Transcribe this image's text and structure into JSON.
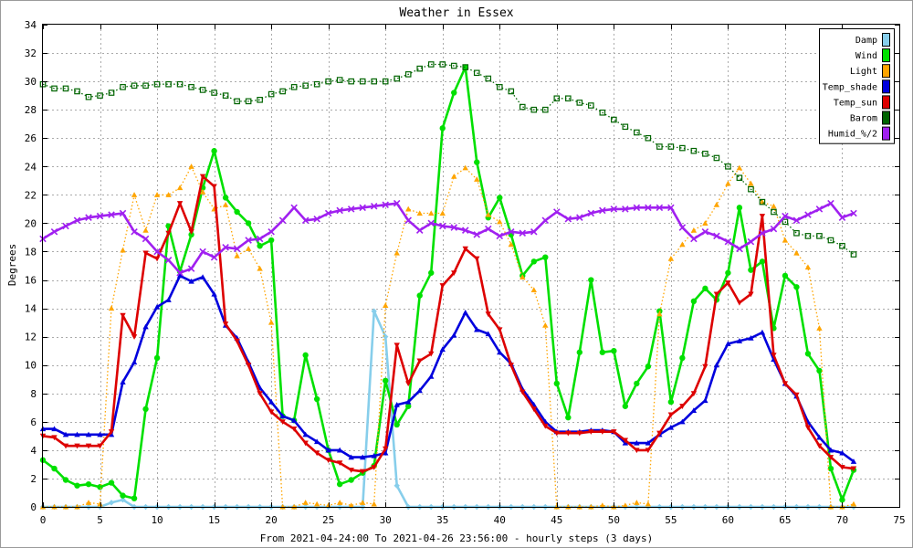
{
  "chart_data": {
    "type": "line",
    "title": "Weather in Essex",
    "xlabel": "From 2021-04-24:00 To 2021-04-26 23:56:00 - hourly steps (3 days)",
    "ylabel": "Degrees",
    "xlim": [
      0,
      75
    ],
    "ylim": [
      0,
      34
    ],
    "xticks": [
      0,
      5,
      10,
      15,
      20,
      25,
      30,
      35,
      40,
      45,
      50,
      55,
      60,
      65,
      70,
      75
    ],
    "yticks": [
      0,
      2,
      4,
      6,
      8,
      10,
      12,
      14,
      16,
      18,
      20,
      22,
      24,
      26,
      28,
      30,
      32,
      34
    ],
    "grid": true,
    "legend_position": "top-right",
    "x": [
      0,
      1,
      2,
      3,
      4,
      5,
      6,
      7,
      8,
      9,
      10,
      11,
      12,
      13,
      14,
      15,
      16,
      17,
      18,
      19,
      20,
      21,
      22,
      23,
      24,
      25,
      26,
      27,
      28,
      29,
      30,
      31,
      32,
      33,
      34,
      35,
      36,
      37,
      38,
      39,
      40,
      41,
      42,
      43,
      44,
      45,
      46,
      47,
      48,
      49,
      50,
      51,
      52,
      53,
      54,
      55,
      56,
      57,
      58,
      59,
      60,
      61,
      62,
      63,
      64,
      65,
      66,
      67,
      68,
      69,
      70,
      71
    ],
    "series": [
      {
        "name": "Damp",
        "color": "#87ceeb",
        "style": "solid",
        "marker": "diamond",
        "values": [
          0,
          0,
          0,
          0,
          0,
          0,
          0.3,
          0.5,
          0,
          0,
          0,
          0,
          0,
          0,
          0,
          0,
          0,
          0,
          0,
          0,
          0,
          0,
          0,
          0,
          0,
          0,
          0,
          0,
          0,
          13.8,
          12,
          1.5,
          0,
          0,
          0,
          0,
          0,
          0,
          0,
          0,
          0,
          0,
          0,
          0,
          0,
          0,
          0,
          0,
          0,
          0,
          0,
          0,
          0,
          0,
          0,
          0,
          0,
          0,
          0,
          0,
          0,
          0,
          0,
          0,
          0,
          0,
          0,
          0,
          0,
          0,
          0,
          0
        ]
      },
      {
        "name": "Wind",
        "color": "#00e000",
        "style": "solid",
        "marker": "circle",
        "values": [
          3.3,
          2.7,
          1.9,
          1.5,
          1.6,
          1.4,
          1.7,
          0.8,
          0.6,
          6.9,
          10.5,
          19.8,
          16.6,
          19.2,
          22.5,
          25.1,
          21.8,
          20.8,
          20,
          18.4,
          18.8,
          6.4,
          6.1,
          10.7,
          7.6,
          4,
          1.6,
          1.9,
          2.4,
          2.9,
          8.9,
          5.8,
          7.1,
          14.9,
          16.5,
          26.7,
          29.2,
          31,
          24.3,
          20.4,
          21.8,
          19.2,
          16.3,
          17.3,
          17.6,
          8.7,
          6.3,
          10.9,
          16,
          10.9,
          11,
          7.1,
          8.7,
          9.9,
          13.8,
          7.4,
          10.5,
          14.5,
          15.4,
          14.6,
          16.5,
          21.1,
          16.7,
          17.3,
          12.6,
          16.3,
          15.5,
          10.8,
          9.6,
          2.7,
          0.5,
          2.6
        ]
      },
      {
        "name": "Light",
        "color": "#ffa500",
        "style": "dotted",
        "marker": "triangle",
        "values": [
          0,
          0,
          0,
          0,
          0.3,
          0.2,
          14,
          18.1,
          22,
          19.5,
          22,
          22,
          22.5,
          24,
          22.2,
          21,
          21.3,
          17.7,
          18.2,
          16.8,
          13,
          0,
          0,
          0.3,
          0.2,
          0.1,
          0.3,
          0.1,
          0.3,
          0.2,
          14.2,
          17.9,
          21,
          20.7,
          20.7,
          20.7,
          23.3,
          23.9,
          23.1,
          20.6,
          20.1,
          18.5,
          16.2,
          15.3,
          12.8,
          0,
          0,
          0,
          0,
          0.1,
          0,
          0.1,
          0.3,
          0.2,
          13.6,
          17.5,
          18.5,
          19.5,
          20,
          21.3,
          22.8,
          23.9,
          22.8,
          21.5,
          21.2,
          18.8,
          17.9,
          16.9,
          12.6,
          0,
          0,
          0.2
        ]
      },
      {
        "name": "Temp_shade",
        "color": "#0000dd",
        "style": "solid",
        "marker": "triangle",
        "values": [
          5.5,
          5.5,
          5.1,
          5.1,
          5.1,
          5.1,
          5.1,
          8.8,
          10.2,
          12.7,
          14.1,
          14.6,
          16.3,
          15.9,
          16.2,
          15,
          12.8,
          11.9,
          10.2,
          8.4,
          7.4,
          6.4,
          6.1,
          5.1,
          4.6,
          4,
          4,
          3.5,
          3.5,
          3.6,
          3.8,
          7.2,
          7.4,
          8.2,
          9.2,
          11.1,
          12.1,
          13.7,
          12.5,
          12.2,
          10.9,
          10.1,
          8.3,
          7.2,
          6,
          5.3,
          5.3,
          5.3,
          5.4,
          5.4,
          5.3,
          4.5,
          4.5,
          4.5,
          5.1,
          5.6,
          6,
          6.8,
          7.5,
          10,
          11.5,
          11.7,
          11.9,
          12.3,
          10.4,
          8.7,
          7.8,
          6,
          4.9,
          4,
          3.8,
          3.2
        ]
      },
      {
        "name": "Temp_sun",
        "color": "#dd0000",
        "style": "solid",
        "marker": "triangle-down",
        "values": [
          5,
          4.9,
          4.3,
          4.3,
          4.3,
          4.3,
          5.3,
          13.5,
          12,
          17.9,
          17.5,
          19.3,
          21.4,
          19.4,
          23.3,
          22.6,
          12.9,
          11.7,
          10,
          8,
          6.7,
          6,
          5.5,
          4.5,
          3.8,
          3.3,
          3.1,
          2.6,
          2.5,
          2.8,
          4.1,
          11.4,
          8.7,
          10.3,
          10.8,
          15.6,
          16.5,
          18.2,
          17.5,
          13.6,
          12.5,
          10,
          8.1,
          6.9,
          5.7,
          5.2,
          5.2,
          5.2,
          5.3,
          5.3,
          5.3,
          4.7,
          4,
          4,
          5.2,
          6.5,
          7.1,
          8,
          9.9,
          15,
          15.8,
          14.4,
          15,
          20.5,
          10.7,
          8.7,
          7.9,
          5.6,
          4.3,
          3.5,
          2.8,
          2.7
        ]
      },
      {
        "name": "Barom",
        "color": "#006400",
        "style": "dotted",
        "marker": "square",
        "values": [
          29.8,
          29.5,
          29.5,
          29.3,
          28.9,
          29,
          29.2,
          29.6,
          29.7,
          29.7,
          29.8,
          29.8,
          29.8,
          29.6,
          29.4,
          29.2,
          29,
          28.6,
          28.6,
          28.7,
          29.1,
          29.3,
          29.6,
          29.7,
          29.8,
          30,
          30.1,
          30,
          30,
          30,
          30,
          30.2,
          30.5,
          30.9,
          31.2,
          31.2,
          31.1,
          31,
          30.6,
          30.2,
          29.6,
          29.3,
          28.2,
          28,
          28,
          28.8,
          28.8,
          28.5,
          28.3,
          27.8,
          27.3,
          26.8,
          26.4,
          26,
          25.4,
          25.4,
          25.3,
          25.1,
          24.9,
          24.6,
          24,
          23.2,
          22.4,
          21.5,
          20.8,
          20.1,
          19.3,
          19.1,
          19.1,
          18.8,
          18.4,
          17.8
        ]
      },
      {
        "name": "Humid_%/2",
        "color": "#a020f0",
        "style": "solid",
        "marker": "x",
        "values": [
          18.9,
          19.4,
          19.8,
          20.2,
          20.4,
          20.5,
          20.6,
          20.7,
          19.4,
          18.9,
          18,
          17.4,
          16.5,
          16.8,
          18,
          17.6,
          18.3,
          18.2,
          18.8,
          18.9,
          19.4,
          20.2,
          21.1,
          20.2,
          20.3,
          20.7,
          20.9,
          21,
          21.1,
          21.2,
          21.3,
          21.4,
          20.2,
          19.5,
          20,
          19.8,
          19.7,
          19.5,
          19.2,
          19.6,
          19.1,
          19.4,
          19.3,
          19.4,
          20.2,
          20.8,
          20.3,
          20.4,
          20.7,
          20.9,
          21,
          21,
          21.1,
          21.1,
          21.1,
          21.1,
          19.7,
          18.9,
          19.4,
          19.1,
          18.7,
          18.2,
          18.7,
          19.3,
          19.6,
          20.5,
          20.2,
          20.6,
          21,
          21.4,
          20.4,
          20.7
        ]
      }
    ]
  }
}
